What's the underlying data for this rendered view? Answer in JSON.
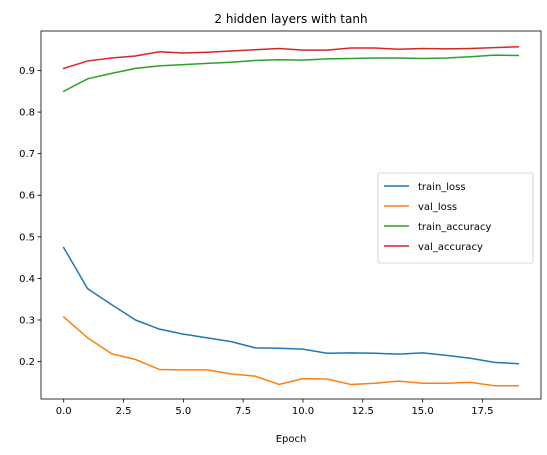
{
  "chart_data": {
    "type": "line",
    "title": "2 hidden layers with tanh",
    "xlabel": "Epoch",
    "ylabel": "",
    "xlim": [
      -0.95,
      19.95
    ],
    "ylim": [
      0.11,
      0.995
    ],
    "xticks": [
      0.0,
      2.5,
      5.0,
      7.5,
      10.0,
      12.5,
      15.0,
      17.5
    ],
    "xtick_labels": [
      "0.0",
      "2.5",
      "5.0",
      "7.5",
      "10.0",
      "12.5",
      "15.0",
      "17.5"
    ],
    "yticks": [
      0.2,
      0.3,
      0.4,
      0.5,
      0.6,
      0.7,
      0.8,
      0.9
    ],
    "ytick_labels": [
      "0.2",
      "0.3",
      "0.4",
      "0.5",
      "0.6",
      "0.7",
      "0.8",
      "0.9"
    ],
    "grid": false,
    "legend_position": "center-right",
    "x": [
      0,
      1,
      2,
      3,
      4,
      5,
      6,
      7,
      8,
      9,
      10,
      11,
      12,
      13,
      14,
      15,
      16,
      17,
      18,
      19
    ],
    "series": [
      {
        "name": "train_loss",
        "color": "#1f77b4",
        "values": [
          0.474,
          0.375,
          0.337,
          0.3,
          0.278,
          0.266,
          0.257,
          0.248,
          0.233,
          0.232,
          0.23,
          0.22,
          0.221,
          0.22,
          0.218,
          0.221,
          0.215,
          0.208,
          0.198,
          0.195
        ]
      },
      {
        "name": "val_loss",
        "color": "#ff7f0e",
        "values": [
          0.307,
          0.257,
          0.219,
          0.205,
          0.181,
          0.18,
          0.18,
          0.17,
          0.165,
          0.145,
          0.159,
          0.158,
          0.145,
          0.148,
          0.153,
          0.148,
          0.148,
          0.15,
          0.142,
          0.142
        ]
      },
      {
        "name": "train_accuracy",
        "color": "#2ca02c",
        "values": [
          0.85,
          0.88,
          0.893,
          0.905,
          0.911,
          0.914,
          0.917,
          0.92,
          0.924,
          0.926,
          0.925,
          0.928,
          0.929,
          0.93,
          0.93,
          0.929,
          0.93,
          0.933,
          0.937,
          0.936
        ]
      },
      {
        "name": "val_accuracy",
        "color": "#d62728",
        "values": [
          0.905,
          0.923,
          0.93,
          0.935,
          0.945,
          0.942,
          0.944,
          0.947,
          0.95,
          0.953,
          0.949,
          0.949,
          0.954,
          0.954,
          0.951,
          0.953,
          0.952,
          0.953,
          0.955,
          0.957
        ]
      }
    ]
  }
}
